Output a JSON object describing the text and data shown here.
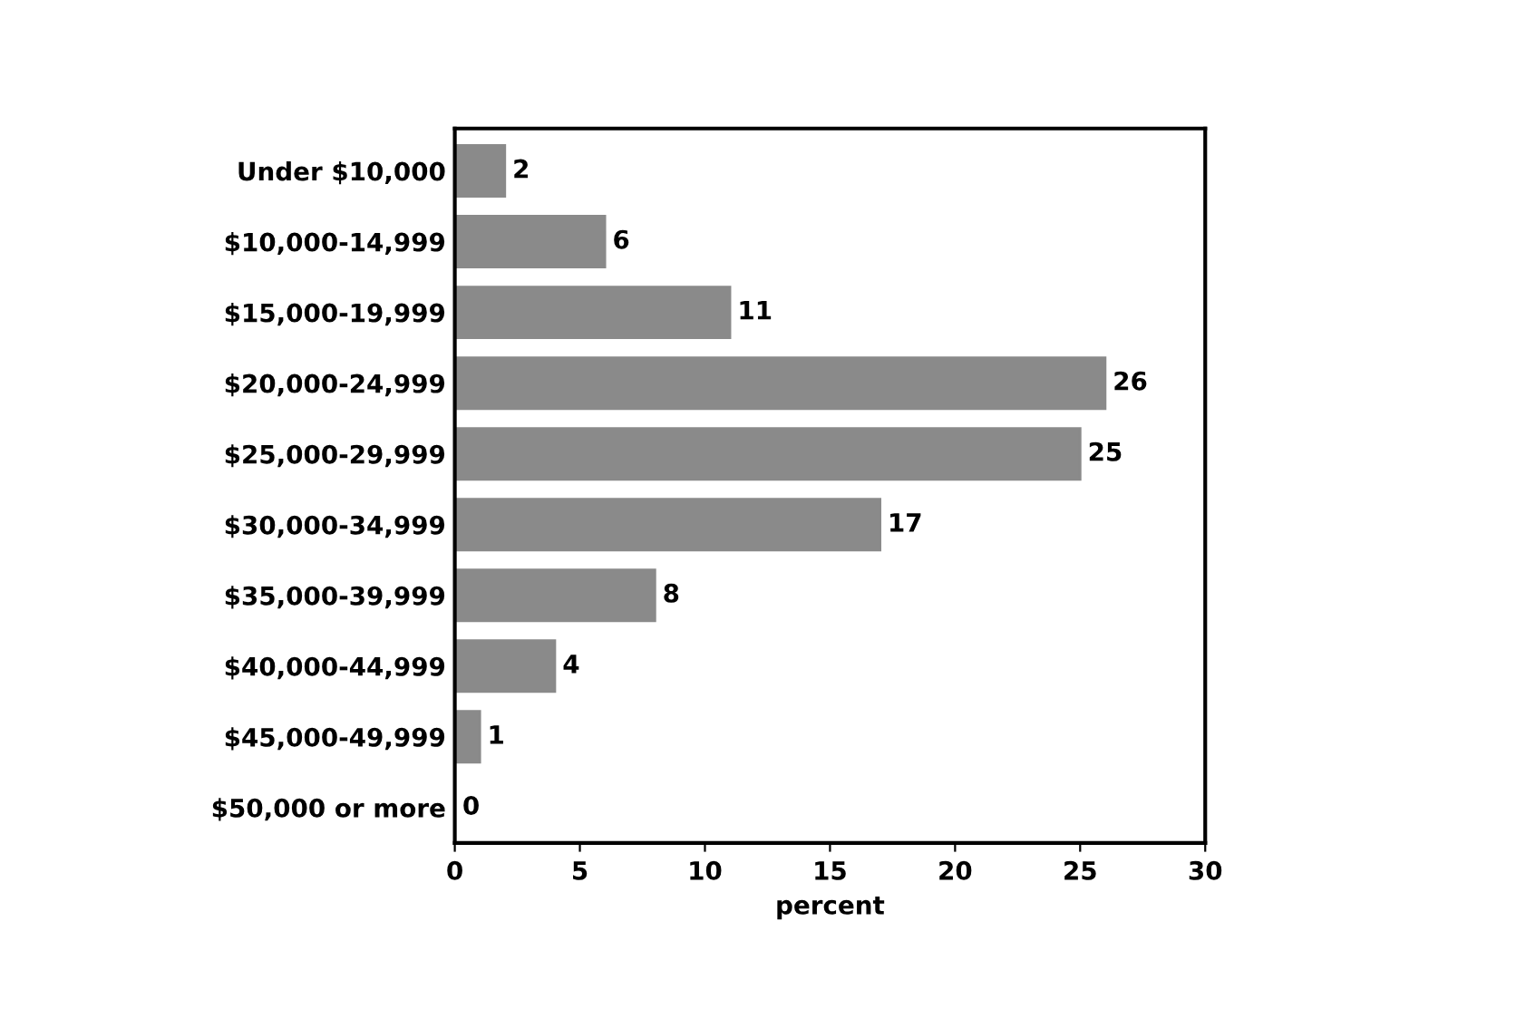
{
  "chart_data": {
    "type": "bar",
    "orientation": "horizontal",
    "xlabel": "percent",
    "categories": [
      "Under $10,000",
      "$10,000-14,999",
      "$15,000-19,999",
      "$20,000-24,999",
      "$25,000-29,999",
      "$30,000-34,999",
      "$35,000-39,999",
      "$40,000-44,999",
      "$45,000-49,999",
      "$50,000 or more"
    ],
    "values": [
      2,
      6,
      11,
      26,
      25,
      17,
      8,
      4,
      1,
      0
    ],
    "color": "#8a8a8a",
    "data_labels": true,
    "xlim": [
      0,
      30
    ],
    "xticks": [
      0,
      5,
      10,
      15,
      20,
      25,
      30
    ],
    "grid": false
  }
}
